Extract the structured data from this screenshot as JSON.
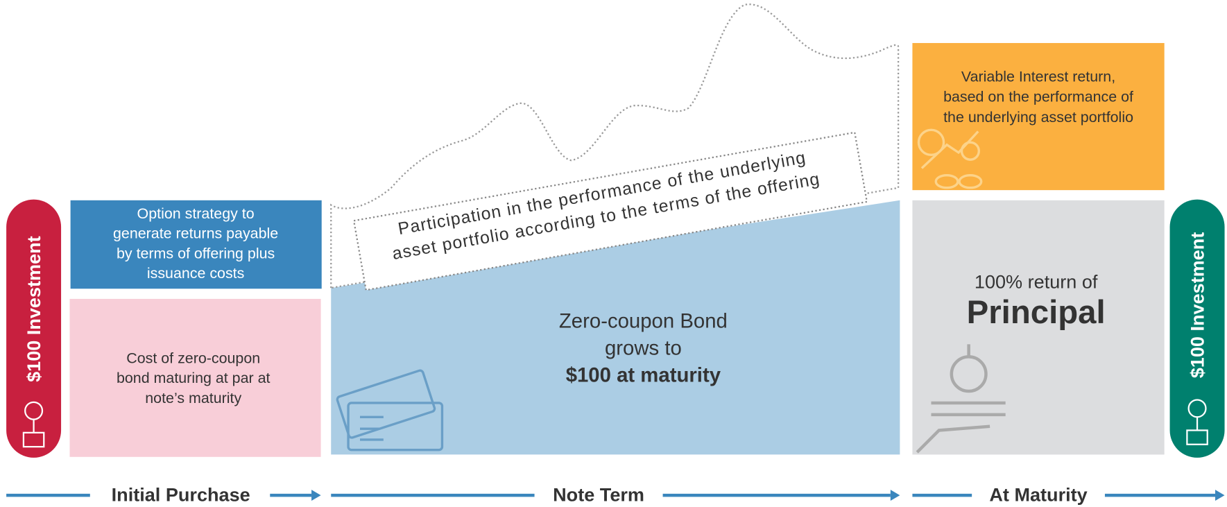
{
  "left_pill": "$100 Investment",
  "option_box": [
    "Option strategy to",
    "generate returns payable",
    "by terms of offering plus",
    "issuance costs"
  ],
  "cost_box": [
    "Cost of zero-coupon",
    "bond maturing at par at",
    "note’s maturity"
  ],
  "participation": [
    "Participation in the performance of the underlying",
    "asset portfolio according to the terms of the offering"
  ],
  "bond": [
    "Zero-coupon Bond",
    "grows to",
    "$100 at maturity"
  ],
  "variable": [
    "Variable Interest return,",
    "based on the  performance of",
    "the  underlying asset portfolio"
  ],
  "principal": [
    "100% return of",
    "Principal"
  ],
  "right_pill": "$100 Investment",
  "timeline": [
    "Initial Purchase",
    "Note Term",
    "At Maturity"
  ]
}
